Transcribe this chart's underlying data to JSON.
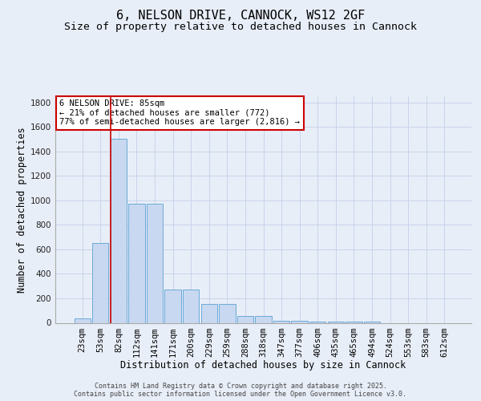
{
  "title": "6, NELSON DRIVE, CANNOCK, WS12 2GF",
  "subtitle": "Size of property relative to detached houses in Cannock",
  "xlabel": "Distribution of detached houses by size in Cannock",
  "ylabel": "Number of detached properties",
  "categories": [
    "23sqm",
    "53sqm",
    "82sqm",
    "112sqm",
    "141sqm",
    "171sqm",
    "200sqm",
    "229sqm",
    "259sqm",
    "288sqm",
    "318sqm",
    "347sqm",
    "377sqm",
    "406sqm",
    "435sqm",
    "465sqm",
    "494sqm",
    "524sqm",
    "553sqm",
    "583sqm",
    "612sqm"
  ],
  "values": [
    35,
    650,
    1500,
    970,
    970,
    270,
    270,
    155,
    155,
    55,
    55,
    15,
    15,
    10,
    10,
    10,
    10,
    0,
    0,
    0,
    0
  ],
  "bar_color": "#c8d8f0",
  "bar_edge_color": "#6baad8",
  "vline_x": 1.55,
  "vline_color": "#cc0000",
  "annotation_text": "6 NELSON DRIVE: 85sqm\n← 21% of detached houses are smaller (772)\n77% of semi-detached houses are larger (2,816) →",
  "annotation_box_facecolor": "#ffffff",
  "annotation_box_edgecolor": "#cc0000",
  "grid_color": "#c8d4ea",
  "background_color": "#e8eef8",
  "ylim": [
    0,
    1850
  ],
  "yticks": [
    0,
    200,
    400,
    600,
    800,
    1000,
    1200,
    1400,
    1600,
    1800
  ],
  "footer_line1": "Contains HM Land Registry data © Crown copyright and database right 2025.",
  "footer_line2": "Contains public sector information licensed under the Open Government Licence v3.0.",
  "title_fontsize": 11,
  "subtitle_fontsize": 9.5,
  "xlabel_fontsize": 8.5,
  "ylabel_fontsize": 8.5,
  "tick_fontsize": 7.5,
  "annotation_fontsize": 7.5,
  "footer_fontsize": 6
}
